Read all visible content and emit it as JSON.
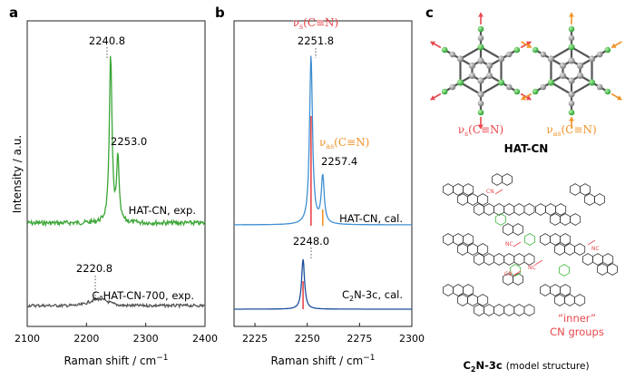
{
  "colors": {
    "hat_exp": "#3aa535",
    "c_hat": "#555555",
    "hat_cal": "#3f8fd2",
    "c2n": "#1c4f9c",
    "sym": "#e8474c",
    "asym": "#f0932a",
    "atom_c": "#8d8d8d",
    "atom_n": "#3cb83c"
  },
  "chart_data": [
    {
      "type": "line",
      "panel_label": "a",
      "xlabel": "Raman shift / cm",
      "xlabel_sup": "−1",
      "ylabel": "Intensity / a.u.",
      "xlim": [
        2100,
        2400
      ],
      "xticks": [
        "2100",
        "2200",
        "2300",
        "2400"
      ],
      "series": [
        {
          "name": "HAT-CN, exp.",
          "peaks": [
            {
              "x": 2240.8,
              "label": "2240.8"
            },
            {
              "x": 2253.0,
              "label": "2253.0"
            }
          ]
        },
        {
          "name": "C-HAT-CN-700, exp.",
          "peaks": [
            {
              "x": 2220.8,
              "label": "2220.8"
            }
          ]
        }
      ]
    },
    {
      "type": "line",
      "panel_label": "b",
      "xlabel": "Raman shift / cm",
      "xlabel_sup": "−1",
      "xlim": [
        2215,
        2300
      ],
      "xticks": [
        "2225",
        "2250",
        "2275",
        "2300"
      ],
      "annotations": {
        "sym_base": "ν",
        "sym_sub": "s",
        "sym_rest": "(C≡N)",
        "asym_base": "ν",
        "asym_sub": "as",
        "asym_rest": "(C≡N)"
      },
      "series": [
        {
          "name": "HAT-CN, cal.",
          "peaks": [
            {
              "x": 2251.8,
              "label": "2251.8"
            },
            {
              "x": 2257.4,
              "label": "2257.4"
            }
          ]
        },
        {
          "name": "C2N-3c, cal.",
          "name_parts": [
            "C",
            "2",
            "N-3c, cal."
          ],
          "peaks": [
            {
              "x": 2248.0,
              "label": "2248.0"
            }
          ]
        }
      ]
    }
  ],
  "panel_c": {
    "label": "c",
    "hatcn_title": "HAT-CN",
    "sym_base": "ν",
    "sym_sub": "s",
    "sym_rest": "(C≡N)",
    "asym_base": "ν",
    "asym_sub": "as",
    "asym_rest": "(C≡N)",
    "inner_line1": "“inner”",
    "inner_line2": "CN groups",
    "nc_label": "NC",
    "cn_label": "CN",
    "c2n_parts": [
      "C",
      "2",
      "N-3c"
    ],
    "c2n_note": "(model structure)"
  }
}
